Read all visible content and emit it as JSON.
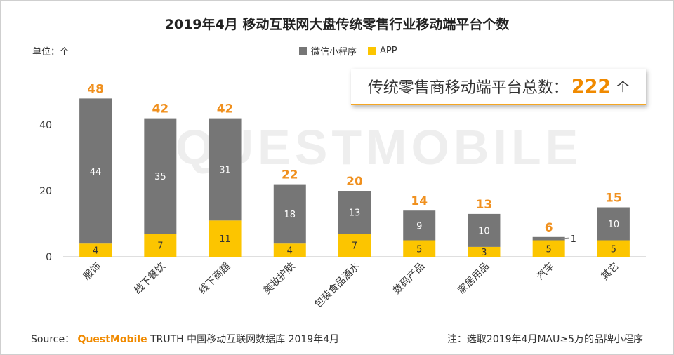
{
  "title": "2019年4月 移动互联网大盘传统零售行业移动端平台个数",
  "unit_label": "单位：个",
  "legend": [
    {
      "name": "微信小程序",
      "color": "#767676"
    },
    {
      "name": "APP",
      "color": "#fcc500"
    }
  ],
  "total_callout": {
    "label": "传统零售商移动端平台总数：",
    "value": "222",
    "unit": "个"
  },
  "watermark": "QUESTMOBILE",
  "footer": {
    "source_prefix": "Source：",
    "brand": "QuestMobile",
    "source_suffix": "TRUTH 中国移动互联网数据库 2019年4月",
    "note": "注：选取2019年4月MAU≥5万的品牌小程序"
  },
  "chart_data": {
    "type": "bar",
    "stacked": true,
    "categories": [
      "服饰",
      "线下餐饮",
      "线下商超",
      "美妆护肤",
      "包装食品酒水",
      "数码产品",
      "家居用品",
      "汽车",
      "其它"
    ],
    "series": [
      {
        "name": "APP",
        "values": [
          4,
          7,
          11,
          4,
          7,
          5,
          3,
          5,
          5
        ],
        "color": "#fcc500"
      },
      {
        "name": "微信小程序",
        "values": [
          44,
          35,
          31,
          18,
          13,
          9,
          10,
          1,
          10
        ],
        "color": "#767676"
      }
    ],
    "totals": [
      48,
      42,
      42,
      22,
      20,
      14,
      13,
      6,
      15
    ],
    "yticks": [
      0,
      20,
      40
    ],
    "ylim": [
      0,
      50
    ],
    "colors": {
      "total_label": "#f0901e",
      "axis": "#bfbfbf",
      "tick_text": "#333333"
    }
  }
}
